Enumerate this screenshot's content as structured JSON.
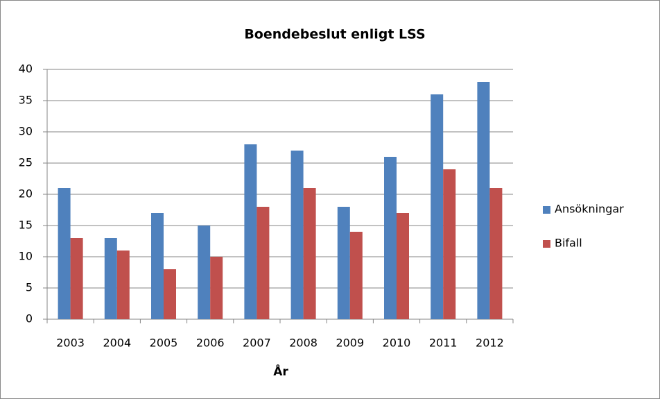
{
  "chart_data": {
    "type": "bar",
    "title": "Boendebeslut enligt LSS",
    "x_label": "År",
    "categories": [
      "2003",
      "2004",
      "2005",
      "2006",
      "2007",
      "2008",
      "2009",
      "2010",
      "2011",
      "2012"
    ],
    "series": [
      {
        "name": "Ansökningar",
        "color": "#4f81bd",
        "values": [
          21,
          13,
          17,
          15,
          28,
          27,
          18,
          26,
          36,
          38
        ]
      },
      {
        "name": "Bifall",
        "color": "#c0504d",
        "values": [
          13,
          11,
          8,
          10,
          18,
          21,
          14,
          17,
          24,
          21
        ]
      }
    ],
    "ylim": [
      0,
      40
    ],
    "yticks": [
      0,
      5,
      10,
      15,
      20,
      25,
      30,
      35,
      40
    ],
    "grid": true,
    "legend": "right"
  }
}
